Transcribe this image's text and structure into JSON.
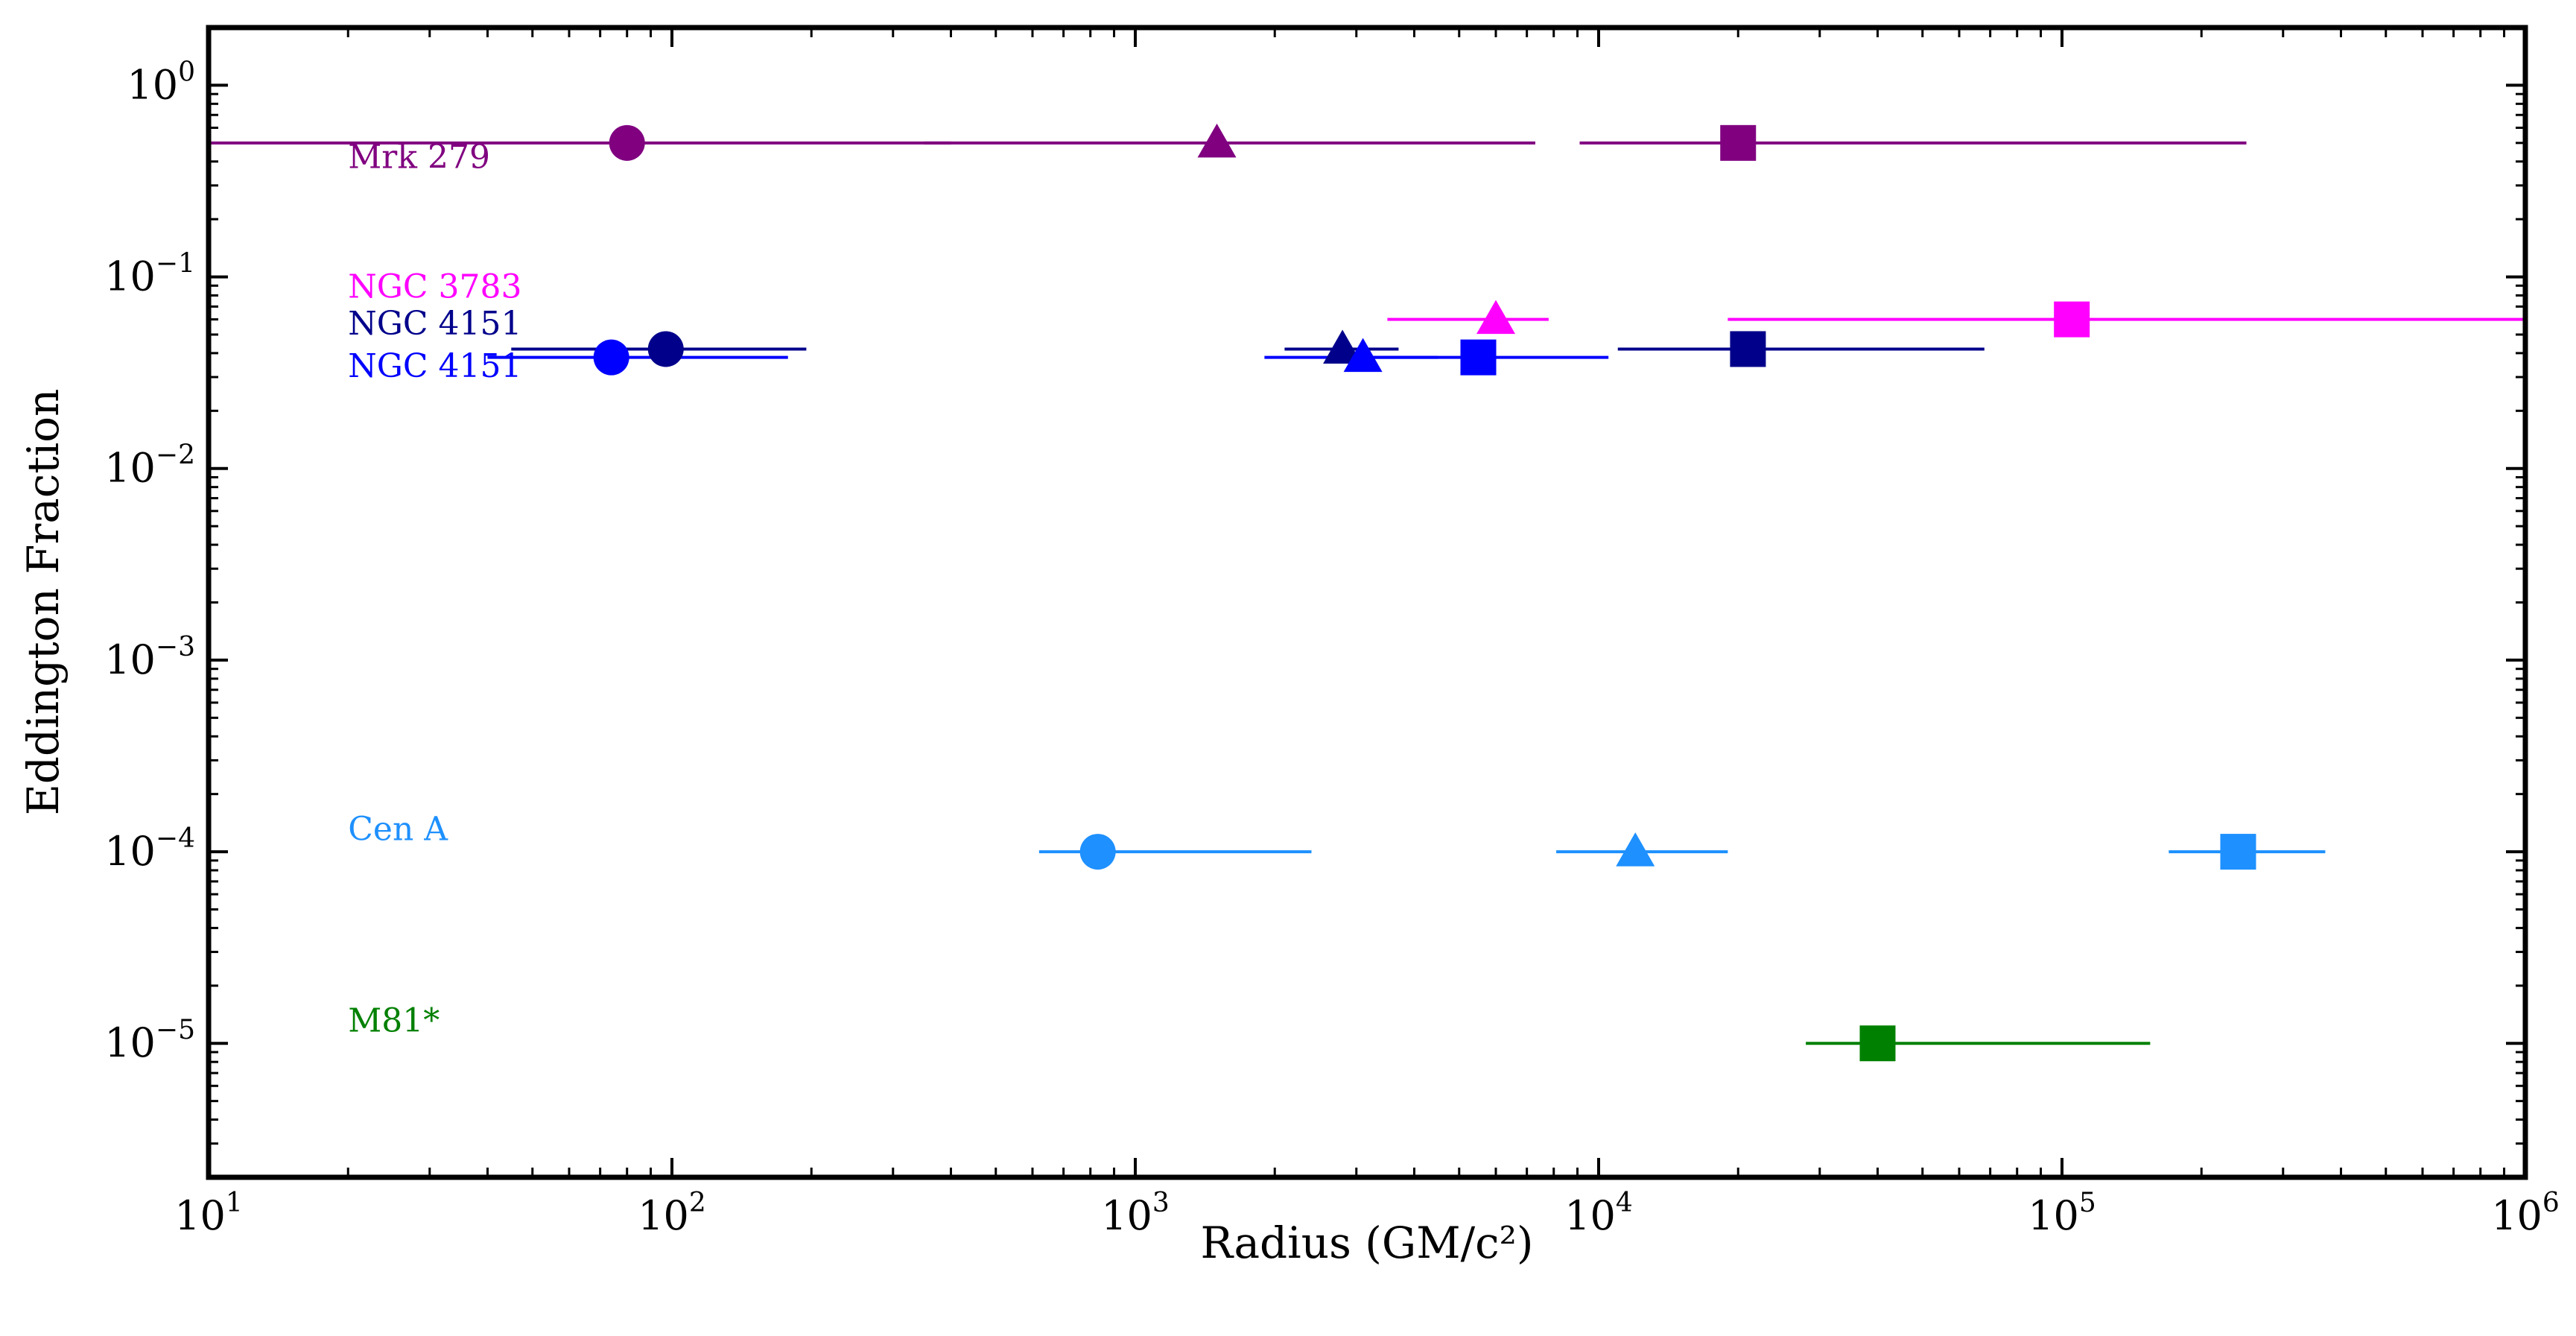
{
  "chart_data": {
    "type": "scatter",
    "xlabel": "Radius (GM/c²)",
    "ylabel": "Eddington Fraction",
    "x_scale": "log",
    "y_scale": "log",
    "xlim": [
      10,
      1000000
    ],
    "ylim": [
      2e-06,
      2
    ],
    "grid": false,
    "x_ticks": [
      {
        "base": "10",
        "exp": "1",
        "value": 10
      },
      {
        "base": "10",
        "exp": "2",
        "value": 100
      },
      {
        "base": "10",
        "exp": "3",
        "value": 1000
      },
      {
        "base": "10",
        "exp": "4",
        "value": 10000
      },
      {
        "base": "10",
        "exp": "5",
        "value": 100000
      },
      {
        "base": "10",
        "exp": "6",
        "value": 1000000
      }
    ],
    "y_ticks": [
      {
        "base": "10",
        "exp": "0",
        "value": 1
      },
      {
        "base": "10",
        "exp": "−1",
        "value": 0.1
      },
      {
        "base": "10",
        "exp": "−2",
        "value": 0.01
      },
      {
        "base": "10",
        "exp": "−3",
        "value": 0.001
      },
      {
        "base": "10",
        "exp": "−4",
        "value": 0.0001
      },
      {
        "base": "10",
        "exp": "−5",
        "value": 1e-05
      }
    ],
    "marker_key": {
      "circle": "circle",
      "triangle": "triangle",
      "square": "square"
    },
    "series": [
      {
        "name": "Mrk 279",
        "color": "#800080",
        "label_pos": {
          "x": 20,
          "y": 0.37
        },
        "points": [
          {
            "marker": "circle",
            "x": 80,
            "y": 0.5,
            "xmin": 10,
            "xmax": 400
          },
          {
            "marker": "triangle",
            "x": 1500,
            "y": 0.5,
            "xmin": 350,
            "xmax": 7300
          },
          {
            "marker": "square",
            "x": 20000,
            "y": 0.5,
            "xmin": 9100,
            "xmax": 250000
          }
        ]
      },
      {
        "name": "NGC 3783",
        "color": "#ff00ff",
        "label_pos": {
          "x": 20,
          "y": 0.078
        },
        "points": [
          {
            "marker": "triangle",
            "x": 6000,
            "y": 0.06,
            "xmin": 3500,
            "xmax": 7800
          },
          {
            "marker": "square",
            "x": 105000,
            "y": 0.06,
            "xmin": 19000,
            "xmax": 1000000
          }
        ]
      },
      {
        "name": "NGC 4151",
        "color": "#00008b",
        "label_pos": {
          "x": 20,
          "y": 0.05
        },
        "points": [
          {
            "marker": "circle",
            "x": 97,
            "y": 0.042,
            "xmin": 45,
            "xmax": 195
          },
          {
            "marker": "triangle",
            "x": 2800,
            "y": 0.042,
            "xmin": 2100,
            "xmax": 3700
          },
          {
            "marker": "square",
            "x": 21000,
            "y": 0.042,
            "xmin": 11000,
            "xmax": 68000
          }
        ]
      },
      {
        "name": "NGC 4151",
        "color": "#0000ff",
        "label_pos": {
          "x": 20,
          "y": 0.03
        },
        "points": [
          {
            "marker": "circle",
            "x": 74,
            "y": 0.038,
            "xmin": 40,
            "xmax": 178
          },
          {
            "marker": "triangle",
            "x": 3100,
            "y": 0.038,
            "xmin": 1900,
            "xmax": 4500
          },
          {
            "marker": "square",
            "x": 5500,
            "y": 0.038,
            "xmin": 3200,
            "xmax": 10500
          }
        ]
      },
      {
        "name": "Cen A",
        "color": "#1e90ff",
        "label_pos": {
          "x": 20,
          "y": 0.000115
        },
        "points": [
          {
            "marker": "circle",
            "x": 830,
            "y": 0.0001,
            "xmin": 620,
            "xmax": 2400
          },
          {
            "marker": "triangle",
            "x": 12000,
            "y": 0.0001,
            "xmin": 8100,
            "xmax": 19000
          },
          {
            "marker": "square",
            "x": 240000,
            "y": 0.0001,
            "xmin": 170000,
            "xmax": 370000
          }
        ]
      },
      {
        "name": "M81*",
        "color": "#008000",
        "label_pos": {
          "x": 20,
          "y": 1.15e-05
        },
        "points": [
          {
            "marker": "square",
            "x": 40000,
            "y": 1e-05,
            "xmin": 28000,
            "xmax": 155000
          }
        ]
      }
    ]
  }
}
